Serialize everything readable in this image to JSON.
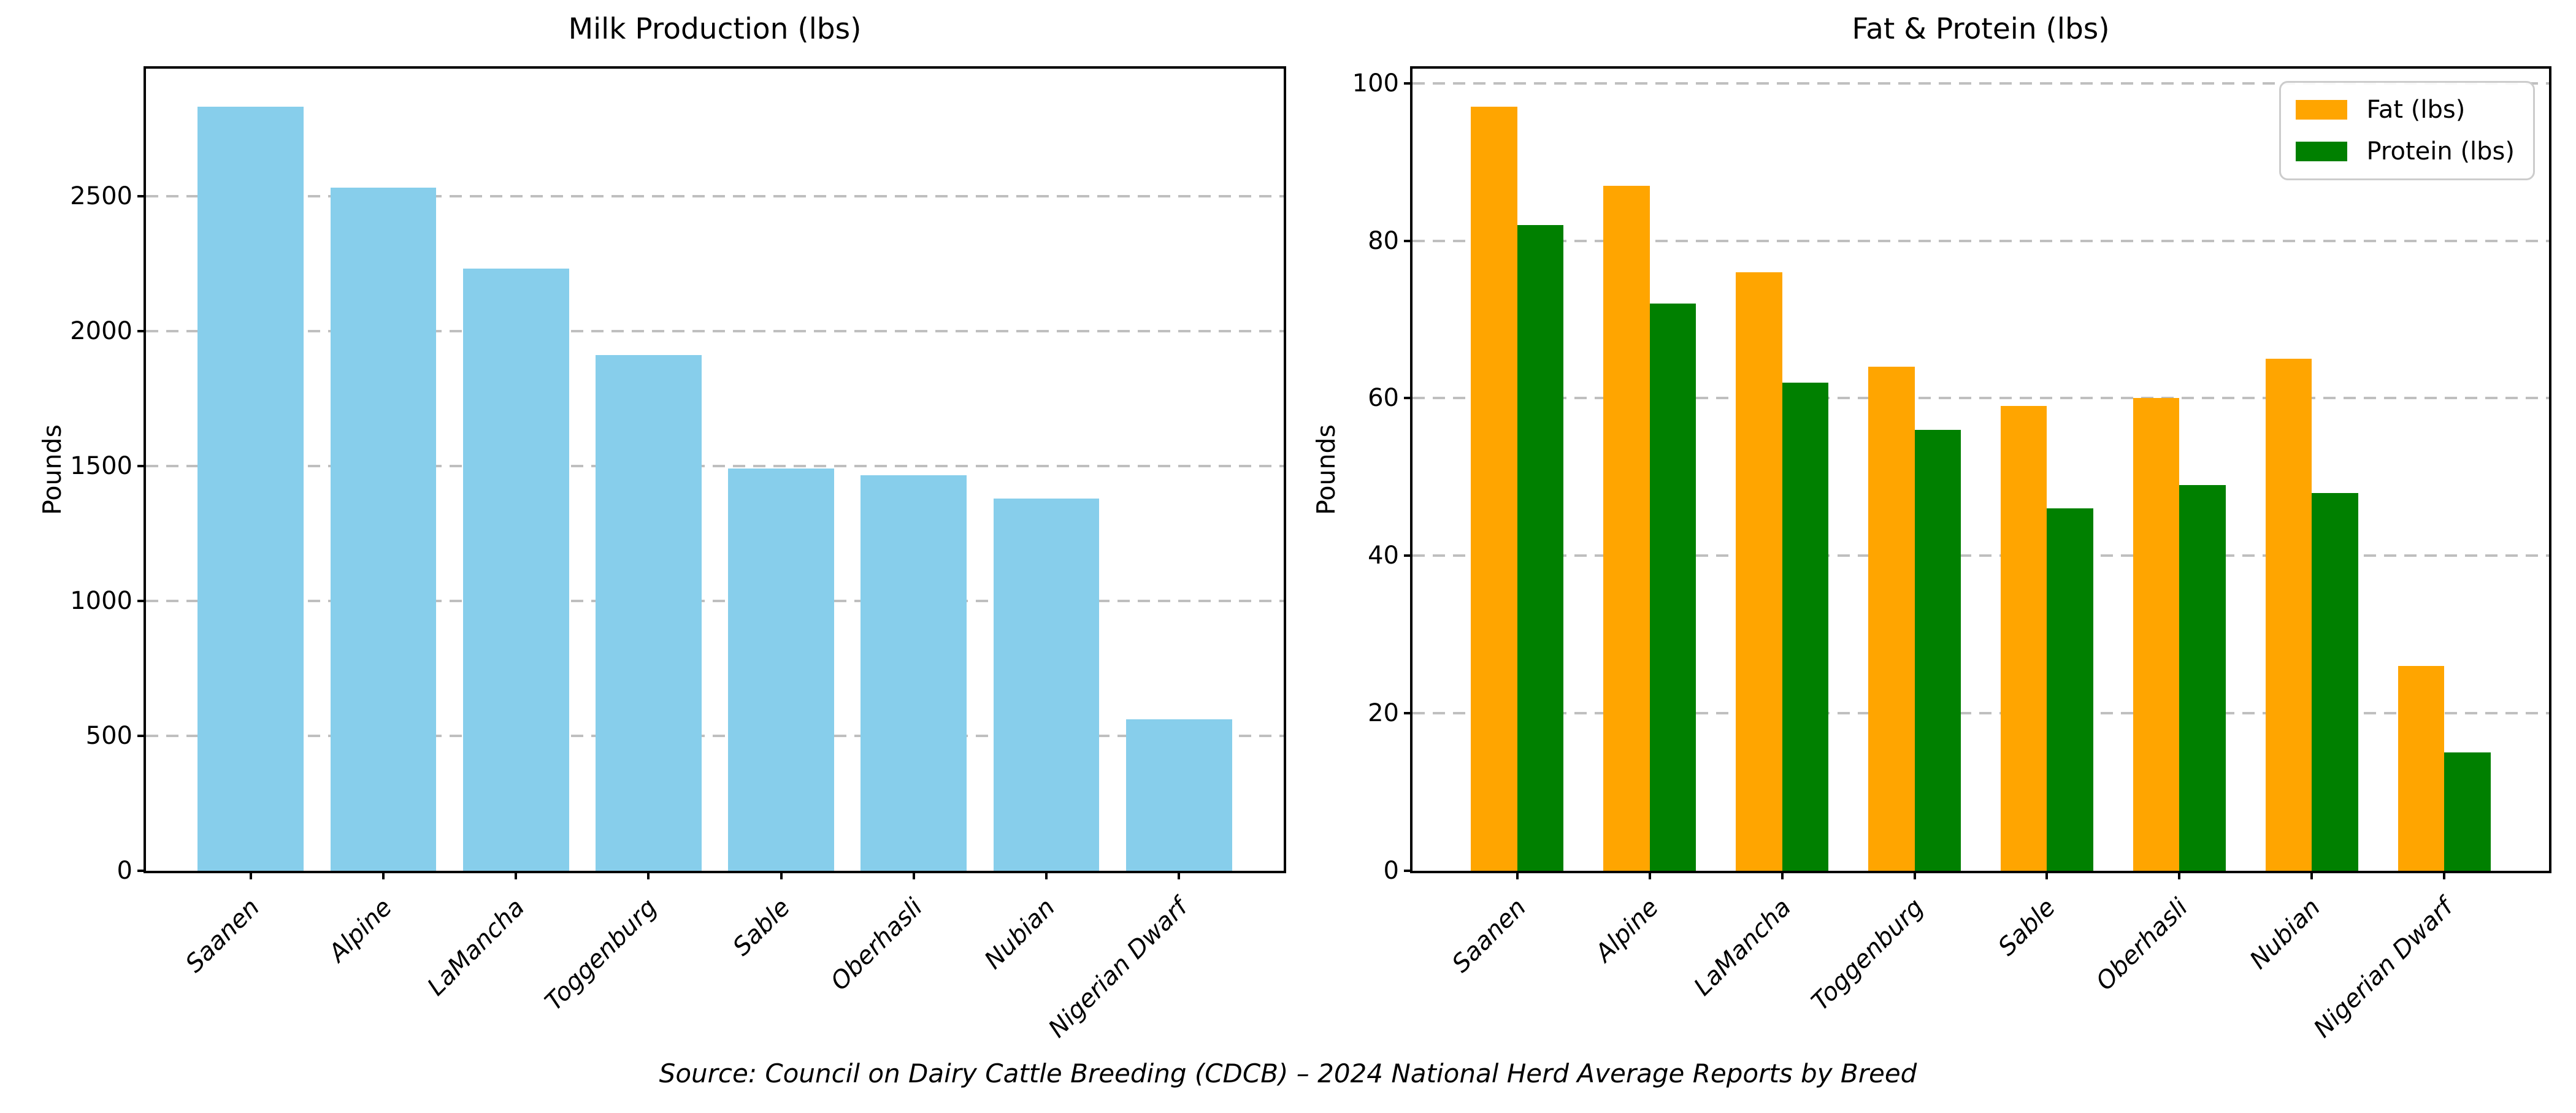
{
  "figure": {
    "caption": "Source: Council on Dairy Cattle Breeding (CDCB) – 2024 National Herd Average Reports by Breed",
    "background_color": "#ffffff",
    "text_color": "#000000",
    "gridline_color": "#bfbfbf"
  },
  "chart_data": [
    {
      "type": "bar",
      "title": "Milk Production (lbs)",
      "xlabel": "",
      "ylabel": "Pounds",
      "categories": [
        "Saanen",
        "Alpine",
        "LaMancha",
        "Toggenburg",
        "Sable",
        "Oberhasli",
        "Nubian",
        "Nigerian Dwarf"
      ],
      "series": [
        {
          "name": "Milk (lbs)",
          "color": "#87CEEB",
          "values": [
            2830,
            2530,
            2230,
            1910,
            1490,
            1465,
            1380,
            560
          ]
        }
      ],
      "yticks": [
        0,
        500,
        1000,
        1500,
        2000,
        2500
      ],
      "ylim": [
        0,
        2971.5
      ],
      "grid": "horizontal-dashed",
      "legend_position": "none"
    },
    {
      "type": "bar",
      "title": "Fat & Protein (lbs)",
      "xlabel": "",
      "ylabel": "Pounds",
      "categories": [
        "Saanen",
        "Alpine",
        "LaMancha",
        "Toggenburg",
        "Sable",
        "Oberhasli",
        "Nubian",
        "Nigerian Dwarf"
      ],
      "series": [
        {
          "name": "Fat (lbs)",
          "color": "#FFA500",
          "values": [
            97,
            87,
            76,
            64,
            59,
            60,
            65,
            26
          ]
        },
        {
          "name": "Protein (lbs)",
          "color": "#008000",
          "values": [
            82,
            72,
            62,
            56,
            46,
            49,
            48,
            15
          ]
        }
      ],
      "yticks": [
        0,
        20,
        40,
        60,
        80,
        100
      ],
      "ylim": [
        0,
        101.85
      ],
      "grid": "horizontal-dashed",
      "legend_position": "upper-right",
      "legend_entries": [
        "Fat (lbs)",
        "Protein (lbs)"
      ]
    }
  ]
}
